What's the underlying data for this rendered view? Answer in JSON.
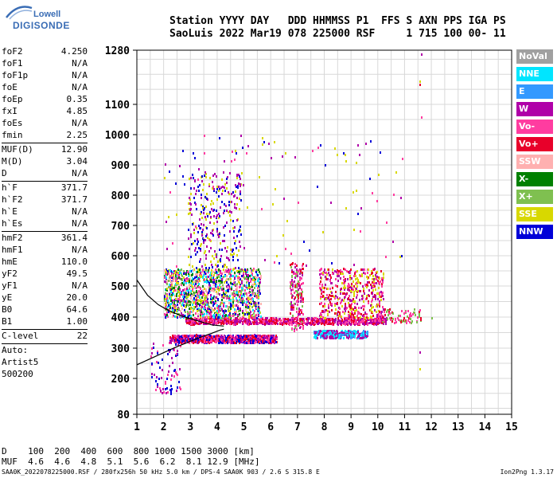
{
  "logo": {
    "line1": "Lowell",
    "line2": "DIGISONDE"
  },
  "header": {
    "line1": "Station YYYY DAY   DDD HHMMSS P1  FFS S AXN PPS IGA PS",
    "line2": "SaoLuis 2022 Mar19 078 225000 RSF     1 715 100 00- 11"
  },
  "params": [
    {
      "k": "foF2",
      "v": "4.250"
    },
    {
      "k": "foF1",
      "v": "N/A"
    },
    {
      "k": "foF1p",
      "v": "N/A"
    },
    {
      "k": "foE",
      "v": "N/A"
    },
    {
      "k": "foEp",
      "v": "0.35"
    },
    {
      "k": "fxI",
      "v": "4.85"
    },
    {
      "k": "foEs",
      "v": "N/A"
    },
    {
      "k": "fmin",
      "v": "2.25",
      "sep": true
    },
    {
      "k": "MUF(D)",
      "v": "12.90"
    },
    {
      "k": "M(D)",
      "v": "3.04"
    },
    {
      "k": "D",
      "v": "N/A",
      "sep": true
    },
    {
      "k": "h`F",
      "v": "371.7"
    },
    {
      "k": "h`F2",
      "v": "371.7"
    },
    {
      "k": "h`E",
      "v": "N/A"
    },
    {
      "k": "h`Es",
      "v": "N/A",
      "sep": true
    },
    {
      "k": "hmF2",
      "v": "361.4"
    },
    {
      "k": "hmF1",
      "v": "N/A"
    },
    {
      "k": "hmE",
      "v": "110.0"
    },
    {
      "k": "yF2",
      "v": "49.5"
    },
    {
      "k": "yF1",
      "v": "N/A"
    },
    {
      "k": "yE",
      "v": "20.0"
    },
    {
      "k": "B0",
      "v": "64.6"
    },
    {
      "k": "B1",
      "v": "1.00",
      "sep": true
    },
    {
      "k": "C-level",
      "v": "22",
      "sep": true
    },
    {
      "k": "Auto:",
      "v": ""
    },
    {
      "k": "Artist5",
      "v": ""
    },
    {
      "k": "500200",
      "v": ""
    }
  ],
  "legend": [
    {
      "label": "NoVal",
      "color": "#a0a0a0"
    },
    {
      "label": "NNE",
      "color": "#00e5ff"
    },
    {
      "label": "E",
      "color": "#3399ff"
    },
    {
      "label": "W",
      "color": "#b000a8"
    },
    {
      "label": "Vo-",
      "color": "#ff3ca0"
    },
    {
      "label": "Vo+",
      "color": "#e8002a"
    },
    {
      "label": "SSW",
      "color": "#ffb0b0"
    },
    {
      "label": "X-",
      "color": "#008000"
    },
    {
      "label": "X+",
      "color": "#7fc050"
    },
    {
      "label": "SSE",
      "color": "#d8d800"
    },
    {
      "label": "NNW",
      "color": "#0000d8"
    }
  ],
  "footer": {
    "line1": "D    100  200  400  600  800 1000 1500 3000 [km]",
    "line2": "MUF  4.6  4.6  4.8  5.1  5.6  6.2  8.1 12.9 [MHz]"
  },
  "bottom": {
    "left": "SAA0K_2022078225000.RSF / 280fx256h 50 kHz 5.0 km / DPS-4 SAA0K 903 / 2.6 S 315.8 E",
    "right": "Ion2Png 1.3.17"
  },
  "chart_data": {
    "type": "scatter",
    "xlabel": "",
    "ylabel": "",
    "x_ticks": [
      1,
      2,
      3,
      4,
      5,
      6,
      7,
      8,
      9,
      10,
      11,
      12,
      13,
      14,
      15
    ],
    "y_ticks": [
      80,
      200,
      300,
      400,
      500,
      600,
      700,
      800,
      900,
      1000,
      1100,
      1280
    ],
    "xlim": [
      1,
      15
    ],
    "ylim": [
      80,
      1280
    ],
    "y_scale": "nonlinear (ionogram virtual height)",
    "grid": true,
    "clusters": [
      {
        "name": "F-layer trace low",
        "fmin": 2.2,
        "fmax": 6.2,
        "hmin": 320,
        "hmax": 345,
        "colors": [
          "#ff3ca0",
          "#b000a8",
          "#0000d8",
          "#e8002a"
        ],
        "n": 900
      },
      {
        "name": "F-layer trace mid",
        "fmin": 2.8,
        "fmax": 10.3,
        "hmin": 380,
        "hmax": 400,
        "colors": [
          "#ff3ca0",
          "#e8002a",
          "#b000a8"
        ],
        "n": 900
      },
      {
        "name": "F-layer spread",
        "fmin": 2.0,
        "fmax": 5.6,
        "hmin": 400,
        "hmax": 560,
        "colors": [
          "#7fc050",
          "#d8d800",
          "#0000d8",
          "#b000a8",
          "#008000",
          "#ff3ca0",
          "#ffb0b0",
          "#00e5ff"
        ],
        "n": 1400
      },
      {
        "name": "X-trace blue",
        "fmin": 7.6,
        "fmax": 9.6,
        "hmin": 335,
        "hmax": 360,
        "colors": [
          "#3399ff",
          "#00e5ff",
          "#b000a8"
        ],
        "n": 300
      },
      {
        "name": "high spread 3-5 MHz",
        "fmin": 2.9,
        "fmax": 4.9,
        "hmin": 560,
        "hmax": 880,
        "colors": [
          "#b000a8",
          "#0000d8",
          "#d8d800"
        ],
        "n": 300
      },
      {
        "name": "spread 7-8 MHz",
        "fmin": 6.7,
        "fmax": 7.2,
        "hmin": 360,
        "hmax": 580,
        "colors": [
          "#ff3ca0",
          "#e8002a",
          "#b000a8",
          "#7fc050"
        ],
        "n": 180
      },
      {
        "name": "spread 8-10 MHz",
        "fmin": 7.8,
        "fmax": 10.2,
        "hmin": 400,
        "hmax": 560,
        "colors": [
          "#ff3ca0",
          "#e8002a",
          "#b000a8",
          "#d8d800"
        ],
        "n": 500
      },
      {
        "name": "tail 10-11.5 MHz",
        "fmin": 10.0,
        "fmax": 11.6,
        "hmin": 385,
        "hmax": 430,
        "colors": [
          "#ff3ca0",
          "#e8002a",
          "#7fc050"
        ],
        "n": 80
      },
      {
        "name": "low echoes",
        "fmin": 1.5,
        "fmax": 2.6,
        "hmin": 150,
        "hmax": 320,
        "colors": [
          "#0000d8",
          "#b000a8",
          "#ff3ca0"
        ],
        "n": 80
      },
      {
        "name": "sparse high",
        "fmin": 2.0,
        "fmax": 11.0,
        "hmin": 560,
        "hmax": 1000,
        "colors": [
          "#b000a8",
          "#d8d800",
          "#ff3ca0",
          "#0000d8"
        ],
        "n": 120
      }
    ],
    "isolated_points": [
      {
        "f": 11.6,
        "h": 1270,
        "c": "#b000a8"
      },
      {
        "f": 11.55,
        "h": 1180,
        "c": "#d8d800"
      },
      {
        "f": 11.55,
        "h": 1170,
        "c": "#e8002a"
      },
      {
        "f": 11.6,
        "h": 1060,
        "c": "#ff3ca0"
      },
      {
        "f": 11.55,
        "h": 235,
        "c": "#d8d800"
      },
      {
        "f": 11.55,
        "h": 290,
        "c": "#b000a8"
      },
      {
        "f": 12.0,
        "h": 400,
        "c": "#7fc050"
      }
    ],
    "profile_curve": [
      [
        1.0,
        245
      ],
      [
        1.5,
        265
      ],
      [
        2.0,
        285
      ],
      [
        2.5,
        305
      ],
      [
        3.0,
        322
      ],
      [
        3.4,
        336
      ],
      [
        3.8,
        348
      ],
      [
        4.1,
        358
      ],
      [
        4.25,
        361
      ]
    ],
    "profile_curve2": [
      [
        1.0,
        520
      ],
      [
        1.4,
        470
      ],
      [
        1.8,
        440
      ],
      [
        2.2,
        420
      ],
      [
        2.8,
        400
      ],
      [
        3.4,
        385
      ],
      [
        3.8,
        375
      ],
      [
        4.25,
        371
      ]
    ]
  }
}
